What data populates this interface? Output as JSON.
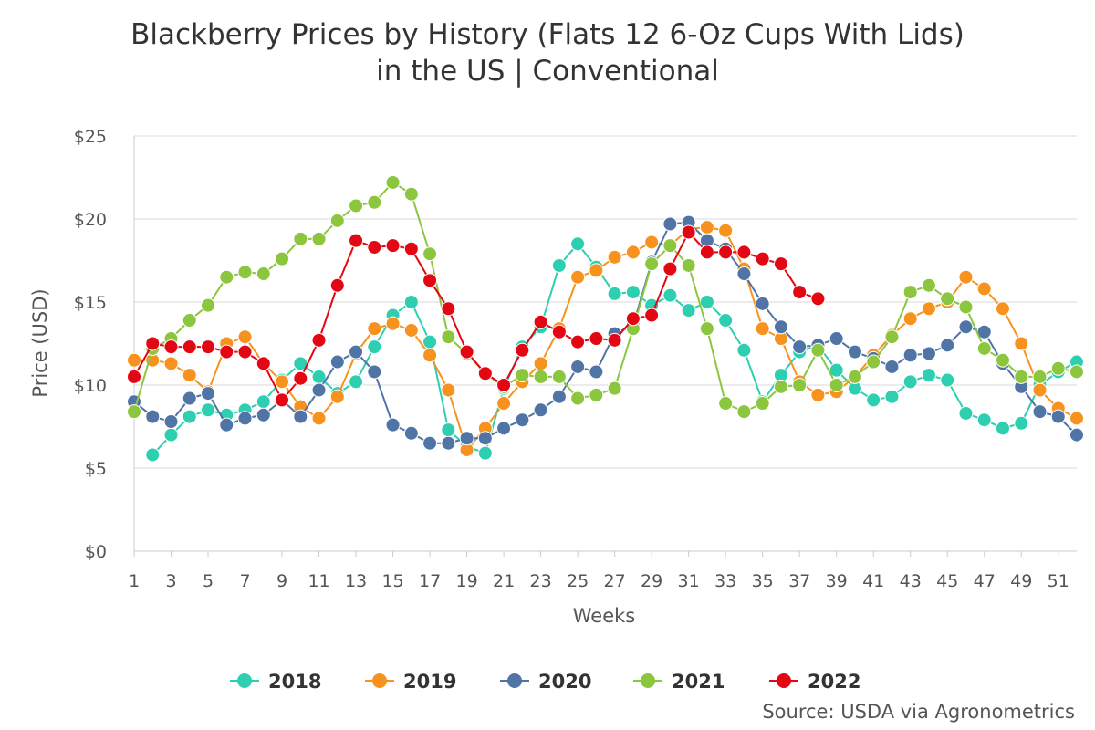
{
  "chart_data": {
    "type": "line",
    "title_lines": [
      "Blackberry Prices by History (Flats 12 6-Oz Cups With Lids)",
      "in the US | Conventional"
    ],
    "xlabel": "Weeks",
    "ylabel": "Price (USD)",
    "x_ticks": [
      "1",
      "3",
      "5",
      "7",
      "9",
      "11",
      "13",
      "15",
      "17",
      "19",
      "21",
      "23",
      "25",
      "27",
      "29",
      "31",
      "33",
      "35",
      "37",
      "39",
      "41",
      "43",
      "45",
      "47",
      "49",
      "51"
    ],
    "y_ticks": [
      "$0",
      "$5",
      "$10",
      "$15",
      "$20",
      "$25"
    ],
    "ylim": [
      0,
      25
    ],
    "xlim": [
      1,
      52
    ],
    "source": "Source: USDA via Agronometrics",
    "series": [
      {
        "name": "2018",
        "color": "#2ecfb0",
        "values": [
          null,
          5.8,
          7.0,
          8.1,
          8.5,
          8.2,
          8.5,
          9.0,
          10.3,
          11.3,
          10.5,
          9.5,
          10.2,
          12.3,
          14.2,
          15.0,
          12.6,
          7.3,
          6.3,
          5.9,
          9.8,
          12.3,
          13.5,
          17.2,
          18.5,
          17.1,
          15.5,
          15.6,
          14.8,
          15.4,
          14.5,
          15.0,
          13.9,
          12.1,
          9.0,
          10.6,
          12.0,
          12.4,
          10.9,
          9.8,
          9.1,
          9.3,
          10.2,
          10.6,
          10.3,
          8.3,
          7.9,
          7.4,
          7.7,
          10.0,
          10.8,
          11.4
        ]
      },
      {
        "name": "2019",
        "color": "#f7921e",
        "values": [
          11.5,
          11.5,
          11.3,
          10.6,
          9.6,
          12.5,
          12.9,
          11.3,
          10.2,
          8.7,
          8.0,
          9.3,
          11.9,
          13.4,
          13.7,
          13.3,
          11.8,
          9.7,
          6.1,
          7.4,
          8.9,
          10.2,
          11.3,
          13.4,
          16.5,
          16.9,
          17.7,
          18.0,
          18.6,
          18.4,
          19.4,
          19.5,
          19.3,
          17.0,
          13.4,
          12.8,
          10.2,
          9.4,
          9.6,
          10.5,
          11.8,
          13.0,
          14.0,
          14.6,
          15.0,
          16.5,
          15.8,
          14.6,
          12.5,
          9.7,
          8.6,
          8.0
        ]
      },
      {
        "name": "2020",
        "color": "#4f74a5",
        "values": [
          9.0,
          8.1,
          7.8,
          9.2,
          9.5,
          7.6,
          8.0,
          8.2,
          9.1,
          8.1,
          9.7,
          11.4,
          12.0,
          10.8,
          7.6,
          7.1,
          6.5,
          6.5,
          6.8,
          6.8,
          7.4,
          7.9,
          8.5,
          9.3,
          11.1,
          10.8,
          13.1,
          13.6,
          17.4,
          19.7,
          19.8,
          18.7,
          18.2,
          16.7,
          14.9,
          13.5,
          12.3,
          12.4,
          12.8,
          12.0,
          11.6,
          11.1,
          11.8,
          11.9,
          12.4,
          13.5,
          13.2,
          11.3,
          9.9,
          8.4,
          8.1,
          7.0
        ]
      },
      {
        "name": "2021",
        "color": "#8cc63e",
        "values": [
          8.4,
          12.2,
          12.8,
          13.9,
          14.8,
          16.5,
          16.8,
          16.7,
          17.6,
          18.8,
          18.8,
          19.9,
          20.8,
          21.0,
          22.2,
          21.5,
          17.9,
          12.9,
          11.9,
          10.7,
          9.9,
          10.6,
          10.5,
          10.5,
          9.2,
          9.4,
          9.8,
          13.4,
          17.3,
          18.4,
          17.2,
          13.4,
          8.9,
          8.4,
          8.9,
          9.9,
          10.0,
          12.1,
          10.0,
          10.5,
          11.4,
          12.9,
          15.6,
          16.0,
          15.2,
          14.7,
          12.2,
          11.5,
          10.5,
          10.5,
          11.0,
          10.8
        ]
      },
      {
        "name": "2022",
        "color": "#e30613",
        "values": [
          10.5,
          12.5,
          12.3,
          12.3,
          12.3,
          12.0,
          12.0,
          11.3,
          9.1,
          10.4,
          12.7,
          16.0,
          18.7,
          18.3,
          18.4,
          18.2,
          16.3,
          14.6,
          12.0,
          10.7,
          10.0,
          12.1,
          13.8,
          13.2,
          12.6,
          12.8,
          12.7,
          14.0,
          14.2,
          17.0,
          19.2,
          18.0,
          18.0,
          18.0,
          17.6,
          17.3,
          15.6,
          15.2
        ]
      }
    ]
  }
}
